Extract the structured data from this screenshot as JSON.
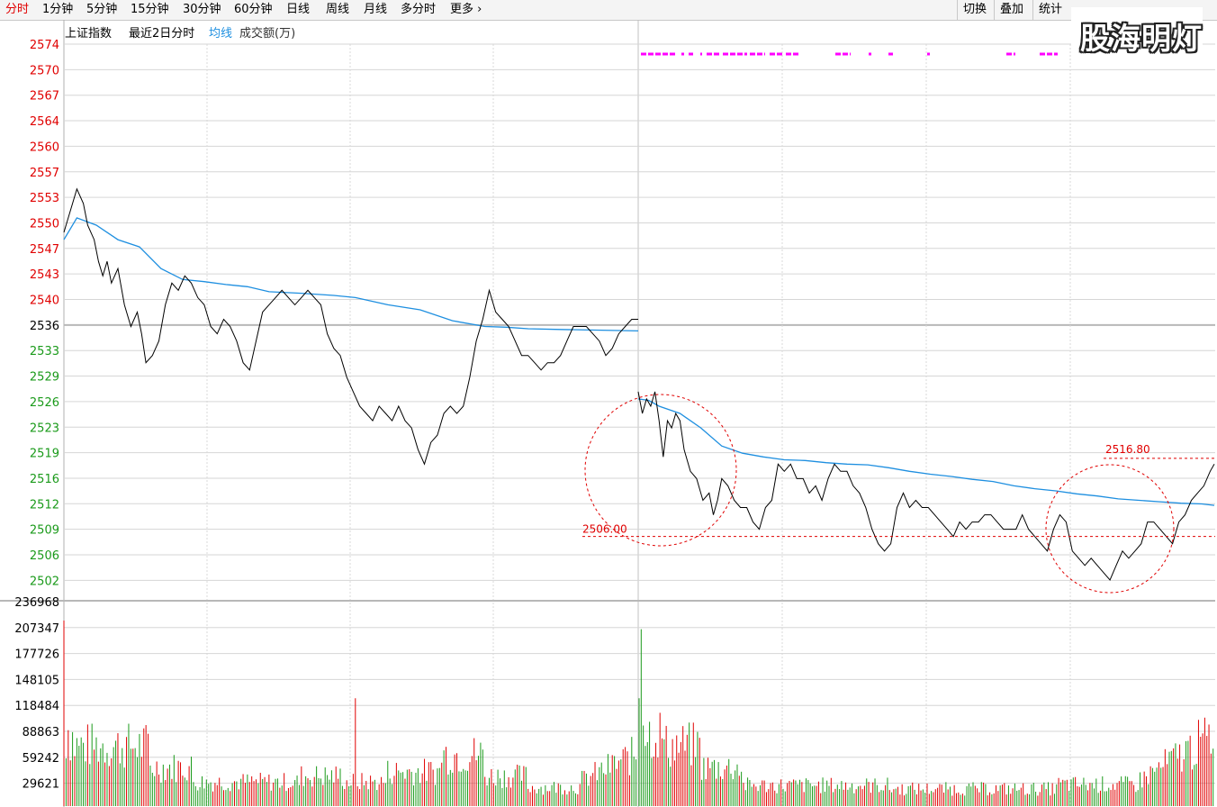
{
  "toolbar": {
    "periods": [
      "分时",
      "1分钟",
      "5分钟",
      "15分钟",
      "30分钟",
      "60分钟",
      "日线",
      "周线",
      "月线",
      "多分时",
      "更多"
    ],
    "buttons": [
      "切换",
      "叠加",
      "统计"
    ]
  },
  "watermark": "股海明灯",
  "legend": {
    "name": "上证指数",
    "period": "最近2日分时",
    "avg": "均线",
    "volume": "成交额(万)"
  },
  "colors": {
    "price": "#000000",
    "avg": "#1e8fe0",
    "up": "#e00000",
    "down": "#1a9a1a",
    "grid": "#c8c8c8",
    "annot": "#e00000",
    "magenta": "#ff00ff"
  },
  "chart_data": {
    "type": "line",
    "price_axis": {
      "ylim": [
        2498,
        2574
      ],
      "red_ticks": [
        "2574",
        "2570",
        "2567",
        "2564",
        "2560",
        "2557",
        "2553",
        "2550",
        "2547",
        "2543",
        "2540"
      ],
      "green_ticks": [
        "2533",
        "2529",
        "2526",
        "2523",
        "2519",
        "2516",
        "2512",
        "2509",
        "2506",
        "2502"
      ],
      "ref_tick": "2536",
      "ref_value": 2536.5
    },
    "volume_axis": {
      "ylim": [
        0,
        236968
      ],
      "ticks": [
        "236968",
        "207347",
        "177726",
        "148105",
        "118484",
        "88863",
        "59242",
        "29621"
      ]
    },
    "day1_price": [
      [
        0,
        2548
      ],
      [
        3,
        2551
      ],
      [
        6,
        2554
      ],
      [
        9,
        2552
      ],
      [
        11,
        2549
      ],
      [
        14,
        2547
      ],
      [
        16,
        2544
      ],
      [
        18,
        2542
      ],
      [
        20,
        2544
      ],
      [
        22,
        2541
      ],
      [
        25,
        2543
      ],
      [
        28,
        2538
      ],
      [
        31,
        2535
      ],
      [
        34,
        2537
      ],
      [
        36,
        2534
      ],
      [
        38,
        2530
      ],
      [
        41,
        2531
      ],
      [
        44,
        2533
      ],
      [
        47,
        2538
      ],
      [
        50,
        2541
      ],
      [
        53,
        2540
      ],
      [
        56,
        2542
      ],
      [
        59,
        2541
      ],
      [
        62,
        2539
      ],
      [
        65,
        2538
      ],
      [
        68,
        2535
      ],
      [
        71,
        2534
      ],
      [
        74,
        2536
      ],
      [
        77,
        2535
      ],
      [
        80,
        2533
      ],
      [
        83,
        2530
      ],
      [
        86,
        2529
      ],
      [
        89,
        2533
      ],
      [
        92,
        2537
      ],
      [
        95,
        2538
      ],
      [
        98,
        2539
      ],
      [
        101,
        2540
      ],
      [
        104,
        2539
      ],
      [
        107,
        2538
      ],
      [
        110,
        2539
      ],
      [
        113,
        2540
      ],
      [
        116,
        2539
      ],
      [
        119,
        2538
      ],
      [
        122,
        2534
      ],
      [
        125,
        2532
      ],
      [
        128,
        2531
      ],
      [
        131,
        2528
      ],
      [
        134,
        2526
      ],
      [
        137,
        2524
      ],
      [
        140,
        2523
      ],
      [
        143,
        2522
      ],
      [
        146,
        2524
      ],
      [
        149,
        2523
      ],
      [
        152,
        2522
      ],
      [
        155,
        2524
      ],
      [
        158,
        2522
      ],
      [
        161,
        2521
      ],
      [
        164,
        2518
      ],
      [
        167,
        2516
      ],
      [
        170,
        2519
      ],
      [
        173,
        2520
      ],
      [
        176,
        2523
      ],
      [
        179,
        2524
      ],
      [
        182,
        2523
      ],
      [
        185,
        2524
      ],
      [
        188,
        2528
      ],
      [
        191,
        2533
      ],
      [
        194,
        2536
      ],
      [
        197,
        2540
      ],
      [
        200,
        2537
      ],
      [
        203,
        2536
      ],
      [
        206,
        2535
      ],
      [
        209,
        2533
      ],
      [
        212,
        2531
      ],
      [
        215,
        2531
      ],
      [
        218,
        2530
      ],
      [
        221,
        2529
      ],
      [
        224,
        2530
      ],
      [
        227,
        2530
      ],
      [
        230,
        2531
      ],
      [
        233,
        2533
      ],
      [
        236,
        2535
      ],
      [
        239,
        2535
      ],
      [
        242,
        2535
      ],
      [
        245,
        2534
      ],
      [
        248,
        2533
      ],
      [
        251,
        2531
      ],
      [
        254,
        2532
      ],
      [
        257,
        2534
      ],
      [
        260,
        2535
      ],
      [
        263,
        2536
      ],
      [
        266,
        2536
      ]
    ],
    "day1_avg": [
      [
        0,
        2547
      ],
      [
        6,
        2550
      ],
      [
        15,
        2549
      ],
      [
        25,
        2547
      ],
      [
        35,
        2546
      ],
      [
        45,
        2543
      ],
      [
        55,
        2541.5
      ],
      [
        65,
        2541.2
      ],
      [
        75,
        2540.8
      ],
      [
        85,
        2540.5
      ],
      [
        95,
        2539.8
      ],
      [
        110,
        2539.6
      ],
      [
        125,
        2539.3
      ],
      [
        135,
        2539
      ],
      [
        150,
        2538
      ],
      [
        165,
        2537.3
      ],
      [
        180,
        2535.8
      ],
      [
        195,
        2535
      ],
      [
        205,
        2534.9
      ],
      [
        215,
        2534.7
      ],
      [
        230,
        2534.6
      ],
      [
        266,
        2534.4
      ]
    ],
    "day2_price": [
      [
        0,
        2526
      ],
      [
        2,
        2523
      ],
      [
        4,
        2525
      ],
      [
        6,
        2524
      ],
      [
        8,
        2526
      ],
      [
        10,
        2522
      ],
      [
        12,
        2517
      ],
      [
        14,
        2522
      ],
      [
        16,
        2521
      ],
      [
        18,
        2523
      ],
      [
        20,
        2522
      ],
      [
        22,
        2518
      ],
      [
        25,
        2515
      ],
      [
        28,
        2514
      ],
      [
        31,
        2511
      ],
      [
        34,
        2512
      ],
      [
        36,
        2509
      ],
      [
        38,
        2511
      ],
      [
        40,
        2514
      ],
      [
        43,
        2513
      ],
      [
        46,
        2511
      ],
      [
        49,
        2510
      ],
      [
        52,
        2510
      ],
      [
        55,
        2508
      ],
      [
        58,
        2507
      ],
      [
        61,
        2510
      ],
      [
        64,
        2511
      ],
      [
        67,
        2516
      ],
      [
        70,
        2515
      ],
      [
        73,
        2516
      ],
      [
        76,
        2514
      ],
      [
        79,
        2514
      ],
      [
        82,
        2512
      ],
      [
        85,
        2513
      ],
      [
        88,
        2511
      ],
      [
        91,
        2514
      ],
      [
        94,
        2516
      ],
      [
        97,
        2515
      ],
      [
        100,
        2515
      ],
      [
        103,
        2513
      ],
      [
        106,
        2512
      ],
      [
        109,
        2510
      ],
      [
        112,
        2507
      ],
      [
        115,
        2505
      ],
      [
        118,
        2504
      ],
      [
        121,
        2505
      ],
      [
        124,
        2510
      ],
      [
        127,
        2512
      ],
      [
        130,
        2510
      ],
      [
        133,
        2511
      ],
      [
        136,
        2510
      ],
      [
        139,
        2510
      ],
      [
        142,
        2509
      ],
      [
        145,
        2508
      ],
      [
        148,
        2507
      ],
      [
        151,
        2506
      ],
      [
        154,
        2508
      ],
      [
        157,
        2507
      ],
      [
        160,
        2508
      ],
      [
        163,
        2508
      ],
      [
        166,
        2509
      ],
      [
        169,
        2509
      ],
      [
        172,
        2508
      ],
      [
        175,
        2507
      ],
      [
        178,
        2507
      ],
      [
        181,
        2507
      ],
      [
        184,
        2509
      ],
      [
        187,
        2507
      ],
      [
        190,
        2506
      ],
      [
        193,
        2505
      ],
      [
        196,
        2504
      ],
      [
        199,
        2507
      ],
      [
        202,
        2509
      ],
      [
        205,
        2508
      ],
      [
        208,
        2504
      ],
      [
        211,
        2503
      ],
      [
        214,
        2502
      ],
      [
        217,
        2503
      ],
      [
        220,
        2502
      ],
      [
        223,
        2501
      ],
      [
        226,
        2500
      ],
      [
        229,
        2502
      ],
      [
        232,
        2504
      ],
      [
        235,
        2503
      ],
      [
        238,
        2504
      ],
      [
        241,
        2505
      ],
      [
        244,
        2508
      ],
      [
        247,
        2508
      ],
      [
        250,
        2507
      ],
      [
        253,
        2506
      ],
      [
        256,
        2505
      ],
      [
        259,
        2508
      ],
      [
        262,
        2509
      ],
      [
        265,
        2511
      ],
      [
        268,
        2512
      ],
      [
        271,
        2513
      ],
      [
        274,
        2515
      ],
      [
        276,
        2516
      ]
    ],
    "day2_avg": [
      [
        0,
        2525
      ],
      [
        5,
        2524.8
      ],
      [
        10,
        2524
      ],
      [
        20,
        2523
      ],
      [
        30,
        2521
      ],
      [
        40,
        2518.5
      ],
      [
        50,
        2517.5
      ],
      [
        60,
        2517
      ],
      [
        70,
        2516.6
      ],
      [
        80,
        2516.5
      ],
      [
        90,
        2516.2
      ],
      [
        100,
        2516
      ],
      [
        110,
        2515.9
      ],
      [
        120,
        2515.5
      ],
      [
        130,
        2515
      ],
      [
        140,
        2514.6
      ],
      [
        150,
        2514.3
      ],
      [
        160,
        2513.9
      ],
      [
        170,
        2513.6
      ],
      [
        180,
        2513
      ],
      [
        190,
        2512.6
      ],
      [
        200,
        2512.3
      ],
      [
        210,
        2511.9
      ],
      [
        220,
        2511.6
      ],
      [
        230,
        2511.2
      ],
      [
        240,
        2511
      ],
      [
        250,
        2510.8
      ],
      [
        260,
        2510.6
      ],
      [
        270,
        2510.5
      ],
      [
        276,
        2510.3
      ]
    ],
    "annotations": [
      {
        "label": "2506.00",
        "value": 2506
      },
      {
        "label": "2516.80",
        "value": 2516.8
      }
    ]
  }
}
